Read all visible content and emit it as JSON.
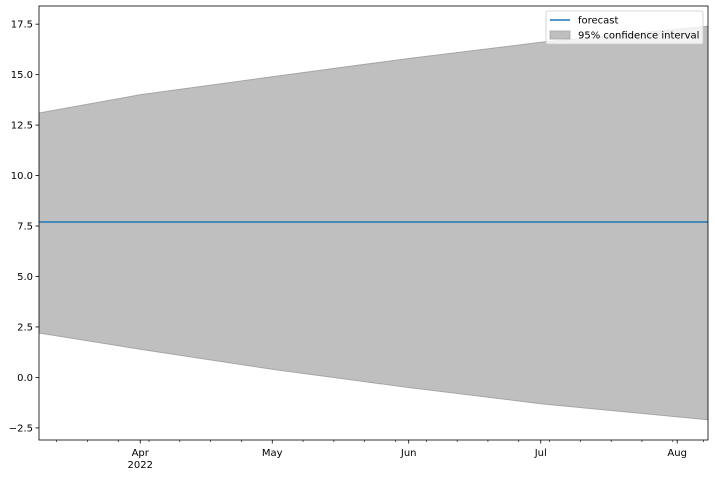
{
  "chart_data": {
    "type": "area",
    "title": "",
    "xlabel": "",
    "ylabel": "",
    "x_axis": {
      "type": "date",
      "range": [
        "2022-03-09",
        "2022-08-08"
      ],
      "major_ticks": [
        {
          "date": "2022-04-01",
          "label": "Apr",
          "sublabel": "2022"
        },
        {
          "date": "2022-05-01",
          "label": "May",
          "sublabel": ""
        },
        {
          "date": "2022-06-01",
          "label": "Jun",
          "sublabel": ""
        },
        {
          "date": "2022-07-01",
          "label": "Jul",
          "sublabel": ""
        },
        {
          "date": "2022-08-01",
          "label": "Aug",
          "sublabel": ""
        }
      ],
      "minor_ticks": [
        "2022-03-13",
        "2022-03-20",
        "2022-03-27",
        "2022-04-03",
        "2022-04-10",
        "2022-04-17",
        "2022-04-24",
        "2022-05-08",
        "2022-05-15",
        "2022-05-22",
        "2022-05-29",
        "2022-06-05",
        "2022-06-12",
        "2022-06-19",
        "2022-06-26",
        "2022-07-03",
        "2022-07-10",
        "2022-07-17",
        "2022-07-24",
        "2022-07-31",
        "2022-08-07"
      ]
    },
    "y_axis": {
      "range": [
        -3.1,
        18.4
      ],
      "ticks": [
        -2.5,
        0.0,
        2.5,
        5.0,
        7.5,
        10.0,
        12.5,
        15.0,
        17.5
      ],
      "tick_labels": [
        "−2.5",
        "0.0",
        "2.5",
        "5.0",
        "7.5",
        "10.0",
        "12.5",
        "15.0",
        "17.5"
      ]
    },
    "grid": false,
    "legend": {
      "placement": "top-right",
      "entries": [
        {
          "label": "forecast",
          "kind": "line",
          "color": "#1f77b4"
        },
        {
          "label": "95% confidence interval",
          "kind": "patch",
          "color": "#bfbfbf"
        }
      ]
    },
    "series": [
      {
        "name": "forecast",
        "type": "line",
        "color": "#1f77b4",
        "x": [
          "2022-03-09",
          "2022-08-08"
        ],
        "values": [
          7.7,
          7.7
        ]
      },
      {
        "name": "95% confidence interval",
        "type": "band",
        "fill": "#bfbfbf",
        "edge": "#a6a6a6",
        "x": [
          "2022-03-09",
          "2022-04-01",
          "2022-05-01",
          "2022-06-01",
          "2022-07-01",
          "2022-08-08"
        ],
        "lower": [
          2.2,
          1.4,
          0.4,
          -0.5,
          -1.3,
          -2.1
        ],
        "upper": [
          13.1,
          14.0,
          14.9,
          15.8,
          16.6,
          17.4
        ]
      }
    ]
  }
}
